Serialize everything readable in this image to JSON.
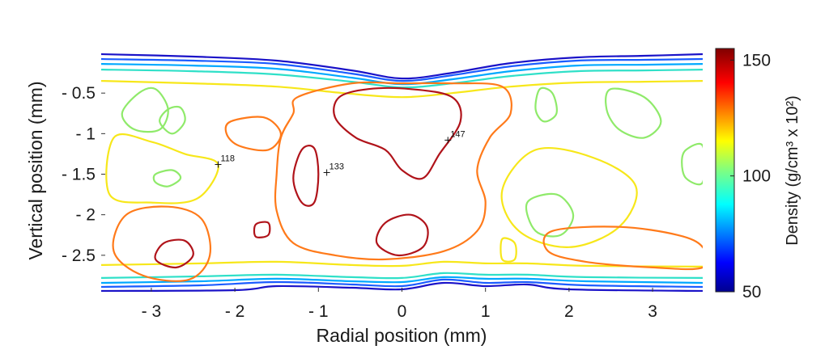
{
  "chart_data": {
    "type": "contour",
    "xlabel": "Radial position (mm)",
    "ylabel": "Vertical position (mm)",
    "xlim": [
      -3.6,
      3.6
    ],
    "ylim": [
      -2.95,
      0.05
    ],
    "x_ticks": [
      {
        "value": -3,
        "label": "- 3"
      },
      {
        "value": -2,
        "label": "- 2"
      },
      {
        "value": -1,
        "label": "- 1"
      },
      {
        "value": 0,
        "label": "0"
      },
      {
        "value": 1,
        "label": "1"
      },
      {
        "value": 2,
        "label": "2"
      },
      {
        "value": 3,
        "label": "3"
      }
    ],
    "y_ticks": [
      {
        "value": -0.5,
        "label": "- 0.5"
      },
      {
        "value": -1,
        "label": "- 1"
      },
      {
        "value": -1.5,
        "label": "- 1.5"
      },
      {
        "value": -2,
        "label": "- 2"
      },
      {
        "value": -2.5,
        "label": "- 2.5"
      }
    ],
    "colorbar": {
      "label": "Density  (g/cm³ x 10²)",
      "range": [
        50,
        155
      ],
      "ticks": [
        {
          "value": 50,
          "label": "50"
        },
        {
          "value": 100,
          "label": "100"
        },
        {
          "value": 150,
          "label": "150"
        }
      ],
      "colormap": "jet"
    },
    "annotations": [
      {
        "x": -2.2,
        "y": -1.38,
        "label": "118"
      },
      {
        "x": -0.9,
        "y": -1.48,
        "label": "133"
      },
      {
        "x": 0.55,
        "y": -1.08,
        "label": "147"
      }
    ],
    "contours": [
      {
        "level": 60,
        "color": "#1a12c8",
        "points": [
          [
            -3.6,
            -0.02
          ],
          [
            -2.5,
            -0.05
          ],
          [
            -1.5,
            -0.1
          ],
          [
            -0.6,
            -0.22
          ],
          [
            0,
            -0.32
          ],
          [
            0.6,
            -0.25
          ],
          [
            1.3,
            -0.13
          ],
          [
            2.1,
            -0.06
          ],
          [
            2.9,
            -0.04
          ],
          [
            3.6,
            -0.02
          ]
        ]
      },
      {
        "level": 60,
        "color": "#1a12c8",
        "points": [
          [
            -3.6,
            -2.94
          ],
          [
            -2,
            -2.93
          ],
          [
            -1.5,
            -2.88
          ],
          [
            -0.6,
            -2.9
          ],
          [
            0,
            -2.92
          ],
          [
            0.5,
            -2.84
          ],
          [
            1.0,
            -2.88
          ],
          [
            1.5,
            -2.86
          ],
          [
            2.0,
            -2.92
          ],
          [
            3.6,
            -2.94
          ]
        ]
      },
      {
        "level": 70,
        "color": "#1b5cff",
        "points": [
          [
            -3.6,
            -0.08
          ],
          [
            -2.5,
            -0.1
          ],
          [
            -1.5,
            -0.14
          ],
          [
            -0.6,
            -0.26
          ],
          [
            0,
            -0.35
          ],
          [
            0.6,
            -0.28
          ],
          [
            1.3,
            -0.17
          ],
          [
            2.1,
            -0.1
          ],
          [
            2.9,
            -0.09
          ],
          [
            3.6,
            -0.08
          ]
        ]
      },
      {
        "level": 70,
        "color": "#1b5cff",
        "points": [
          [
            -3.6,
            -2.89
          ],
          [
            -2.4,
            -2.87
          ],
          [
            -1.5,
            -2.83
          ],
          [
            -0.6,
            -2.86
          ],
          [
            0,
            -2.88
          ],
          [
            0.5,
            -2.8
          ],
          [
            1.0,
            -2.84
          ],
          [
            1.5,
            -2.83
          ],
          [
            2.2,
            -2.87
          ],
          [
            3.6,
            -2.89
          ]
        ]
      },
      {
        "level": 80,
        "color": "#00a8ff",
        "points": [
          [
            -3.6,
            -0.14
          ],
          [
            -2.5,
            -0.16
          ],
          [
            -1.5,
            -0.2
          ],
          [
            -0.6,
            -0.31
          ],
          [
            0,
            -0.39
          ],
          [
            0.6,
            -0.33
          ],
          [
            1.3,
            -0.23
          ],
          [
            2.1,
            -0.16
          ],
          [
            2.9,
            -0.15
          ],
          [
            3.6,
            -0.14
          ]
        ]
      },
      {
        "level": 80,
        "color": "#00a8ff",
        "points": [
          [
            -3.6,
            -2.84
          ],
          [
            -2.4,
            -2.82
          ],
          [
            -1.5,
            -2.79
          ],
          [
            -0.6,
            -2.82
          ],
          [
            0,
            -2.83
          ],
          [
            0.5,
            -2.77
          ],
          [
            1.0,
            -2.79
          ],
          [
            1.5,
            -2.79
          ],
          [
            2.2,
            -2.82
          ],
          [
            3.6,
            -2.84
          ]
        ]
      },
      {
        "level": 90,
        "color": "#2fe0c8",
        "points": [
          [
            -3.6,
            -0.21
          ],
          [
            -2.5,
            -0.23
          ],
          [
            -1.5,
            -0.27
          ],
          [
            -0.6,
            -0.36
          ],
          [
            0,
            -0.43
          ],
          [
            0.6,
            -0.38
          ],
          [
            1.3,
            -0.29
          ],
          [
            2.1,
            -0.23
          ],
          [
            2.9,
            -0.22
          ],
          [
            3.6,
            -0.21
          ]
        ]
      },
      {
        "level": 90,
        "color": "#2fe0c8",
        "points": [
          [
            -3.6,
            -2.78
          ],
          [
            -2.4,
            -2.76
          ],
          [
            -1.5,
            -2.74
          ],
          [
            -0.6,
            -2.77
          ],
          [
            0,
            -2.78
          ],
          [
            0.5,
            -2.72
          ],
          [
            1.0,
            -2.74
          ],
          [
            1.5,
            -2.74
          ],
          [
            2.2,
            -2.77
          ],
          [
            3.6,
            -2.78
          ]
        ]
      },
      {
        "level": 100,
        "color": "#8fea6a",
        "closed": true,
        "points": [
          [
            -3.15,
            -0.5
          ],
          [
            -2.95,
            -0.45
          ],
          [
            -2.8,
            -0.7
          ],
          [
            -2.9,
            -0.95
          ],
          [
            -3.2,
            -0.95
          ],
          [
            -3.35,
            -0.75
          ]
        ]
      },
      {
        "level": 100,
        "color": "#8fea6a",
        "closed": true,
        "points": [
          [
            -2.8,
            -0.7
          ],
          [
            -2.65,
            -0.68
          ],
          [
            -2.6,
            -0.85
          ],
          [
            -2.75,
            -1.0
          ],
          [
            -2.9,
            -0.85
          ]
        ]
      },
      {
        "level": 100,
        "color": "#8fea6a",
        "closed": true,
        "points": [
          [
            -2.95,
            -1.5
          ],
          [
            -2.75,
            -1.45
          ],
          [
            -2.65,
            -1.55
          ],
          [
            -2.8,
            -1.65
          ],
          [
            -2.95,
            -1.6
          ]
        ]
      },
      {
        "level": 100,
        "color": "#8fea6a",
        "closed": true,
        "points": [
          [
            1.65,
            -0.45
          ],
          [
            1.8,
            -0.5
          ],
          [
            1.85,
            -0.75
          ],
          [
            1.7,
            -0.85
          ],
          [
            1.6,
            -0.7
          ]
        ]
      },
      {
        "level": 100,
        "color": "#8fea6a",
        "closed": true,
        "points": [
          [
            2.5,
            -0.45
          ],
          [
            2.9,
            -0.55
          ],
          [
            3.1,
            -0.85
          ],
          [
            2.9,
            -1.05
          ],
          [
            2.6,
            -0.95
          ],
          [
            2.45,
            -0.7
          ]
        ]
      },
      {
        "level": 100,
        "color": "#8fea6a",
        "closed": true,
        "points": [
          [
            1.5,
            -1.85
          ],
          [
            1.85,
            -1.75
          ],
          [
            2.05,
            -2.0
          ],
          [
            1.9,
            -2.25
          ],
          [
            1.6,
            -2.2
          ]
        ]
      },
      {
        "level": 100,
        "color": "#8fea6a",
        "closed": true,
        "points": [
          [
            3.4,
            -1.2
          ],
          [
            3.6,
            -1.15
          ],
          [
            3.6,
            -1.6
          ],
          [
            3.4,
            -1.55
          ],
          [
            3.35,
            -1.35
          ]
        ]
      },
      {
        "level": 110,
        "color": "#f7e71a",
        "points": [
          [
            -3.6,
            -0.35
          ],
          [
            -2.5,
            -0.38
          ],
          [
            -1.5,
            -0.42
          ],
          [
            -0.7,
            -0.5
          ],
          [
            0,
            -0.55
          ],
          [
            0.6,
            -0.5
          ],
          [
            1.3,
            -0.42
          ],
          [
            2.1,
            -0.37
          ],
          [
            2.9,
            -0.36
          ],
          [
            3.6,
            -0.35
          ]
        ]
      },
      {
        "level": 110,
        "color": "#f7e71a",
        "points": [
          [
            -3.6,
            -2.62
          ],
          [
            -2.4,
            -2.6
          ],
          [
            -1.5,
            -2.58
          ],
          [
            -0.6,
            -2.62
          ],
          [
            0,
            -2.63
          ],
          [
            0.5,
            -2.58
          ],
          [
            1.0,
            -2.6
          ],
          [
            1.5,
            -2.6
          ],
          [
            2.2,
            -2.63
          ],
          [
            3.6,
            -2.64
          ]
        ]
      },
      {
        "level": 110,
        "color": "#f7e71a",
        "closed": true,
        "points": [
          [
            -3.45,
            -1.05
          ],
          [
            -3.0,
            -1.1
          ],
          [
            -2.6,
            -1.25
          ],
          [
            -2.2,
            -1.38
          ],
          [
            -2.45,
            -1.8
          ],
          [
            -3.0,
            -1.85
          ],
          [
            -3.5,
            -1.75
          ]
        ]
      },
      {
        "level": 110,
        "color": "#f7e71a",
        "closed": true,
        "points": [
          [
            1.6,
            -1.2
          ],
          [
            2.3,
            -1.3
          ],
          [
            2.8,
            -1.65
          ],
          [
            2.6,
            -2.15
          ],
          [
            2.0,
            -2.4
          ],
          [
            1.4,
            -2.2
          ],
          [
            1.2,
            -1.7
          ]
        ]
      },
      {
        "level": 110,
        "color": "#f7e71a",
        "closed": true,
        "points": [
          [
            1.2,
            -2.3
          ],
          [
            1.35,
            -2.35
          ],
          [
            1.35,
            -2.55
          ],
          [
            1.2,
            -2.55
          ]
        ]
      },
      {
        "level": 130,
        "color": "#ff7a1a",
        "closed": true,
        "points": [
          [
            -1.25,
            -0.55
          ],
          [
            -0.6,
            -0.38
          ],
          [
            0,
            -0.38
          ],
          [
            0.6,
            -0.38
          ],
          [
            1.2,
            -0.42
          ],
          [
            1.3,
            -0.75
          ],
          [
            1.05,
            -1.05
          ],
          [
            0.9,
            -1.45
          ],
          [
            1.0,
            -1.85
          ],
          [
            0.9,
            -2.2
          ],
          [
            0.5,
            -2.45
          ],
          [
            -0.2,
            -2.55
          ],
          [
            -0.8,
            -2.5
          ],
          [
            -1.3,
            -2.35
          ],
          [
            -1.5,
            -1.95
          ],
          [
            -1.5,
            -1.5
          ],
          [
            -1.45,
            -1.05
          ],
          [
            -1.3,
            -0.75
          ]
        ]
      },
      {
        "level": 130,
        "color": "#ff7a1a",
        "closed": true,
        "points": [
          [
            -2.05,
            -0.85
          ],
          [
            -1.65,
            -0.8
          ],
          [
            -1.45,
            -1.0
          ],
          [
            -1.6,
            -1.2
          ],
          [
            -1.95,
            -1.15
          ],
          [
            -2.1,
            -1.0
          ]
        ]
      },
      {
        "level": 130,
        "color": "#ff7a1a",
        "closed": true,
        "points": [
          [
            -3.3,
            -2.0
          ],
          [
            -2.8,
            -1.9
          ],
          [
            -2.4,
            -2.05
          ],
          [
            -2.3,
            -2.5
          ],
          [
            -2.55,
            -2.8
          ],
          [
            -3.1,
            -2.75
          ],
          [
            -3.45,
            -2.45
          ]
        ]
      },
      {
        "level": 130,
        "color": "#ff7a1a",
        "closed": true,
        "points": [
          [
            1.8,
            -2.2
          ],
          [
            2.6,
            -2.15
          ],
          [
            3.3,
            -2.25
          ],
          [
            3.6,
            -2.4
          ],
          [
            3.6,
            -2.65
          ],
          [
            3.0,
            -2.65
          ],
          [
            2.2,
            -2.58
          ],
          [
            1.75,
            -2.45
          ]
        ]
      },
      {
        "level": 150,
        "color": "#b0131a",
        "closed": true,
        "points": [
          [
            -0.75,
            -0.55
          ],
          [
            -0.4,
            -0.45
          ],
          [
            0.1,
            -0.45
          ],
          [
            0.6,
            -0.55
          ],
          [
            0.7,
            -0.85
          ],
          [
            0.45,
            -1.25
          ],
          [
            0.25,
            -1.55
          ],
          [
            0,
            -1.45
          ],
          [
            -0.2,
            -1.2
          ],
          [
            -0.55,
            -1.05
          ],
          [
            -0.8,
            -0.8
          ]
        ]
      },
      {
        "level": 150,
        "color": "#b0131a",
        "closed": true,
        "points": [
          [
            -1.2,
            -1.2
          ],
          [
            -1.05,
            -1.18
          ],
          [
            -1.0,
            -1.5
          ],
          [
            -1.05,
            -1.85
          ],
          [
            -1.2,
            -1.85
          ],
          [
            -1.3,
            -1.55
          ]
        ]
      },
      {
        "level": 150,
        "color": "#b0131a",
        "closed": true,
        "points": [
          [
            -0.2,
            -2.1
          ],
          [
            0.1,
            -2.0
          ],
          [
            0.3,
            -2.15
          ],
          [
            0.25,
            -2.4
          ],
          [
            -0.05,
            -2.5
          ],
          [
            -0.3,
            -2.35
          ]
        ]
      },
      {
        "level": 150,
        "color": "#b0131a",
        "closed": true,
        "points": [
          [
            -2.85,
            -2.35
          ],
          [
            -2.6,
            -2.32
          ],
          [
            -2.5,
            -2.5
          ],
          [
            -2.7,
            -2.65
          ],
          [
            -2.95,
            -2.55
          ]
        ]
      },
      {
        "level": 150,
        "color": "#b0131a",
        "closed": true,
        "points": [
          [
            -1.75,
            -2.12
          ],
          [
            -1.6,
            -2.1
          ],
          [
            -1.6,
            -2.25
          ],
          [
            -1.75,
            -2.27
          ]
        ]
      }
    ]
  }
}
